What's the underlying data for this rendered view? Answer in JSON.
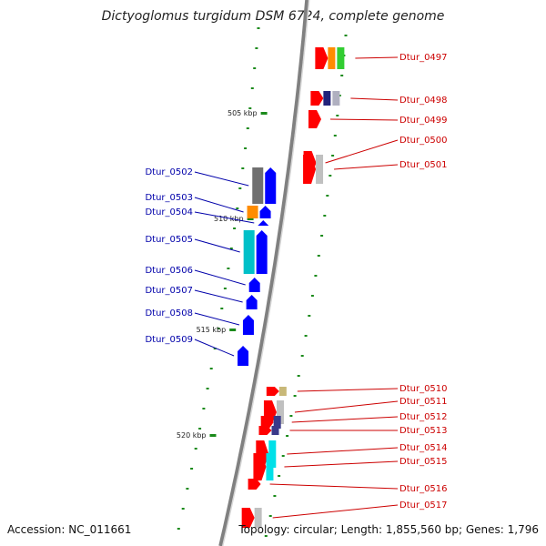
{
  "title": "Dictyoglomus turgidum DSM 6724, complete genome",
  "footer": {
    "accession": "Accession: NC_011661",
    "summary": "Topology: circular; Length: 1,855,560 bp; Genes: 1,796"
  },
  "ticks": [
    "505 kbp",
    "510 kbp",
    "515 kbp",
    "520 kbp"
  ],
  "forward_genes": [
    {
      "id": "Dtur_0497",
      "tracks": [
        "#ff0000",
        "#ff8c00",
        "#32cd32"
      ]
    },
    {
      "id": "Dtur_0498",
      "tracks": [
        "#ff0000",
        "#22227a",
        "#b0b0c0"
      ]
    },
    {
      "id": "Dtur_0499",
      "tracks": [
        "#ff0000"
      ]
    },
    {
      "id": "Dtur_0500",
      "tracks": [
        "#ff0000"
      ]
    },
    {
      "id": "Dtur_0501",
      "tracks": [
        "#ff0000",
        "#c0c0c0"
      ]
    },
    {
      "id": "Dtur_0510",
      "tracks": [
        "#ff0000",
        "#c8b878"
      ]
    },
    {
      "id": "Dtur_0511",
      "tracks": [
        "#ff0000",
        "#c0c0c0"
      ]
    },
    {
      "id": "Dtur_0512",
      "tracks": [
        "#ff0000",
        "#3a3a8a"
      ]
    },
    {
      "id": "Dtur_0513",
      "tracks": [
        "#ff0000",
        "#3a3a8a"
      ]
    },
    {
      "id": "Dtur_0514",
      "tracks": [
        "#ff0000",
        "#00e0e8"
      ]
    },
    {
      "id": "Dtur_0515",
      "tracks": [
        "#ff0000",
        "#00e0e8"
      ]
    },
    {
      "id": "Dtur_0516",
      "tracks": [
        "#ff0000"
      ]
    },
    {
      "id": "Dtur_0517",
      "tracks": [
        "#ff0000",
        "#c0c0c0"
      ]
    }
  ],
  "reverse_genes": [
    {
      "id": "Dtur_0502",
      "tracks": [
        "#0000ff",
        "#707070"
      ]
    },
    {
      "id": "Dtur_0503",
      "tracks": [
        "#0000ff",
        "#ff8c00"
      ]
    },
    {
      "id": "Dtur_0504",
      "tracks": [
        "#0000ff"
      ]
    },
    {
      "id": "Dtur_0505",
      "tracks": [
        "#0000ff",
        "#00c0c8"
      ]
    },
    {
      "id": "Dtur_0506",
      "tracks": [
        "#0000ff"
      ]
    },
    {
      "id": "Dtur_0507",
      "tracks": [
        "#0000ff"
      ]
    },
    {
      "id": "Dtur_0508",
      "tracks": [
        "#0000ff"
      ]
    },
    {
      "id": "Dtur_0509",
      "tracks": [
        "#0000ff"
      ]
    }
  ],
  "colors": {
    "forward_label": "#cc0000",
    "reverse_label": "#0000aa",
    "backbone": "#808080",
    "gc_dots": "#1a8a1a"
  }
}
